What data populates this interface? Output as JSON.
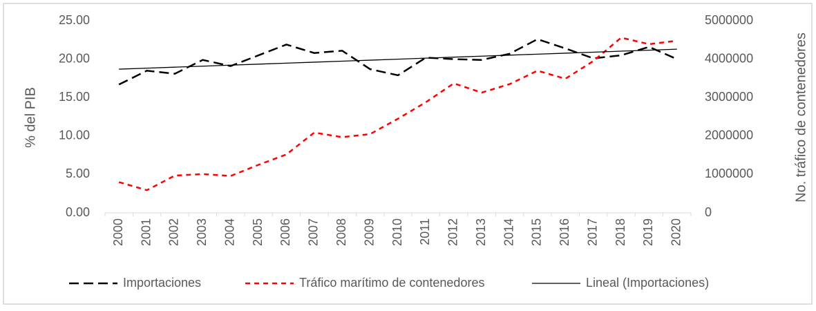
{
  "chart_data": {
    "type": "line",
    "categories": [
      "2000",
      "2001",
      "2002",
      "2003",
      "2004",
      "2005",
      "2006",
      "2007",
      "2008",
      "2009",
      "2010",
      "2011",
      "2012",
      "2013",
      "2014",
      "2015",
      "2016",
      "2017",
      "2018",
      "2019",
      "2020"
    ],
    "y_label": "% del PIB",
    "y2_label": "No. tráfico de contenedores",
    "ylim": [
      0,
      25
    ],
    "yticks": [
      {
        "value": 0,
        "label": "0.00"
      },
      {
        "value": 5,
        "label": "5.00"
      },
      {
        "value": 10,
        "label": "10.00"
      },
      {
        "value": 15,
        "label": "15.00"
      },
      {
        "value": 20,
        "label": "20.00"
      },
      {
        "value": 25,
        "label": "25.00"
      }
    ],
    "y2lim": [
      0,
      5000000
    ],
    "y2ticks": [
      0,
      1000000,
      2000000,
      3000000,
      4000000,
      5000000
    ],
    "grid": false,
    "legend": "bottom",
    "series": [
      {
        "name": "Importaciones",
        "color": "#000000",
        "dash": "long",
        "values": [
          16.7,
          18.5,
          18.1,
          19.9,
          19.1,
          20.5,
          21.9,
          20.8,
          21.1,
          18.7,
          17.9,
          20.2,
          20.0,
          19.9,
          20.7,
          22.6,
          21.4,
          20.1,
          20.5,
          21.6,
          20.0
        ]
      },
      {
        "name": "Tráfico marítimo de contenedores",
        "color": "#ff0000",
        "dash": "short",
        "axis": "y2",
        "values": [
          800000,
          590000,
          970000,
          1010000,
          960000,
          1250000,
          1520000,
          2090000,
          1970000,
          2050000,
          2450000,
          2880000,
          3370000,
          3130000,
          3350000,
          3700000,
          3490000,
          3950000,
          4560000,
          4390000,
          4480000
        ]
      },
      {
        "name": "Lineal (Importaciones)",
        "color": "#000000",
        "dash": "solid",
        "values": [
          18.7,
          18.83,
          18.96,
          19.09,
          19.22,
          19.35,
          19.48,
          19.61,
          19.74,
          19.87,
          20.0,
          20.13,
          20.26,
          20.39,
          20.52,
          20.65,
          20.78,
          20.91,
          21.04,
          21.17,
          21.3
        ]
      }
    ]
  }
}
